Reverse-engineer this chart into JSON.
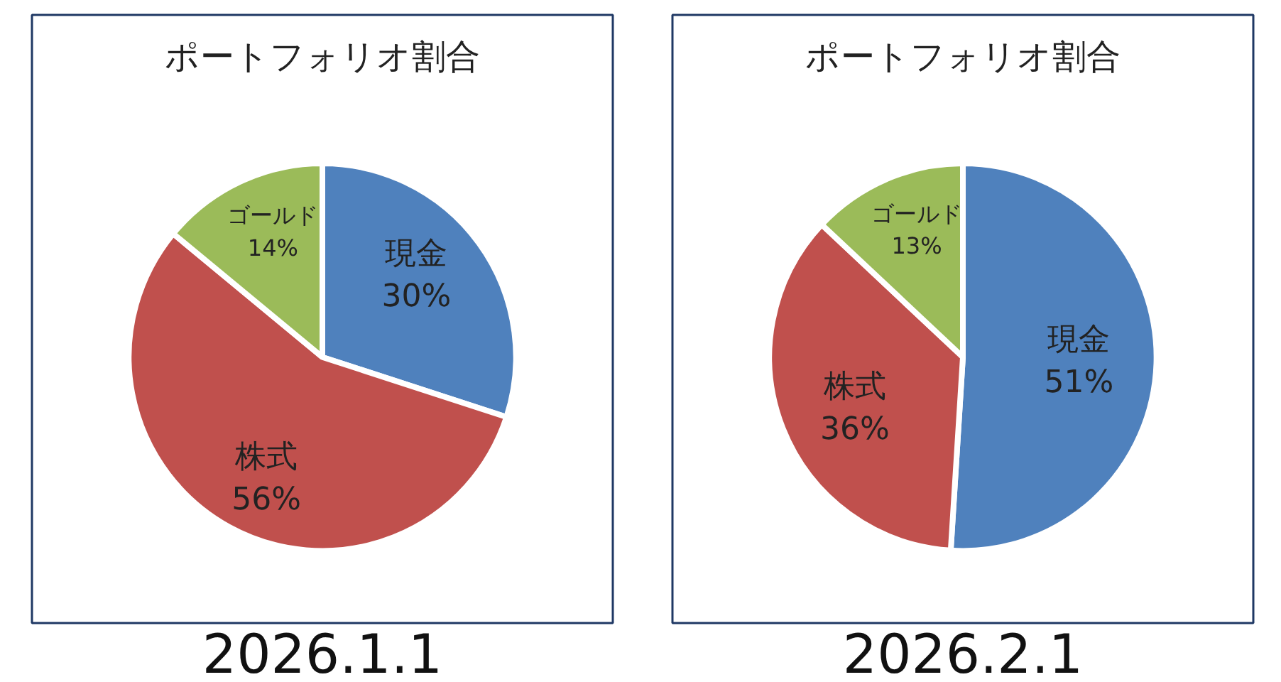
{
  "chart_data": [
    {
      "type": "pie",
      "title": "ポートフォリオ割合",
      "categories": [
        "現金",
        "株式",
        "ゴールド"
      ],
      "values": [
        30,
        56,
        14
      ],
      "colors": [
        "#4f81bd",
        "#c0504d",
        "#9bbb59"
      ],
      "value_labels": [
        "30%",
        "56%",
        "14%"
      ],
      "annotations": [
        "2026.1.1"
      ]
    },
    {
      "type": "pie",
      "title": "ポートフォリオ割合",
      "categories": [
        "現金",
        "株式",
        "ゴールド"
      ],
      "values": [
        51,
        36,
        13
      ],
      "colors": [
        "#4f81bd",
        "#c0504d",
        "#9bbb59"
      ],
      "value_labels": [
        "51%",
        "36%",
        "13%"
      ],
      "annotations": [
        "2026.2.1"
      ]
    }
  ]
}
